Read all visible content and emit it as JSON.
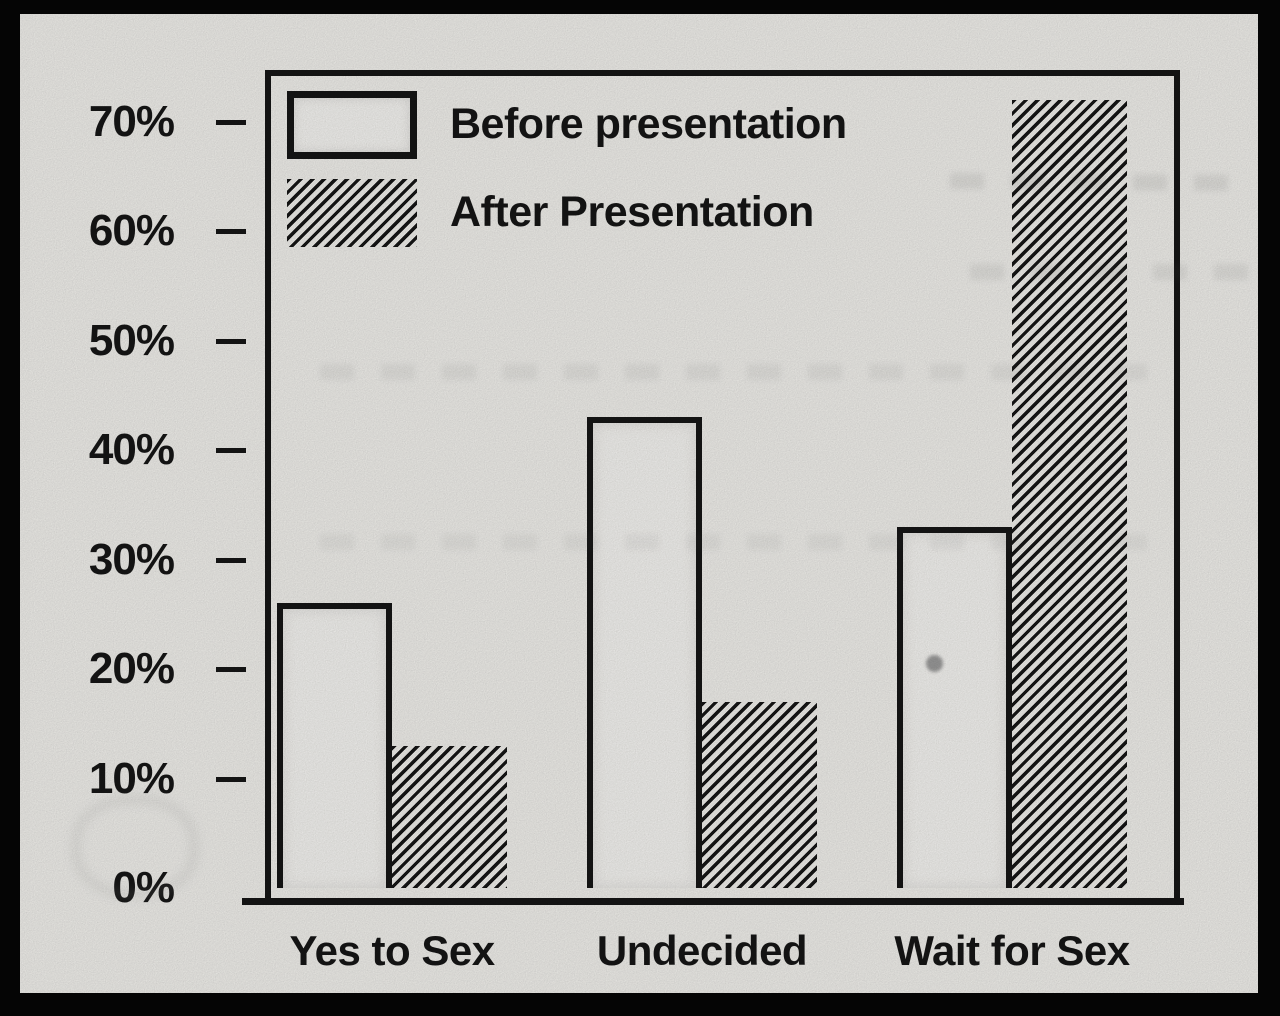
{
  "chart_data": {
    "type": "bar",
    "categories": [
      "Yes to Sex",
      "Undecided",
      "Wait for Sex"
    ],
    "series": [
      {
        "name": "Before presentation",
        "values": [
          26,
          43,
          33
        ],
        "style": "white-outlined"
      },
      {
        "name": "After Presentation",
        "values": [
          13,
          17,
          72
        ],
        "style": "diagonal-hatch"
      }
    ],
    "title": "",
    "xlabel": "",
    "ylabel": "",
    "ylim": [
      0,
      75
    ],
    "yticks": [
      70,
      60,
      50,
      40,
      30,
      20,
      10,
      0
    ],
    "y_tick_labels": [
      "70%",
      "60%",
      "50%",
      "40%",
      "30%",
      "20%",
      "10%",
      "0%"
    ],
    "grid": false,
    "legend_position": "inside-top-left",
    "value_unit": "percent"
  },
  "colors": {
    "ink": "#161616",
    "paper": "#f4f3ef",
    "bar_fill": "#f8f7f4",
    "frame": "#000000"
  }
}
